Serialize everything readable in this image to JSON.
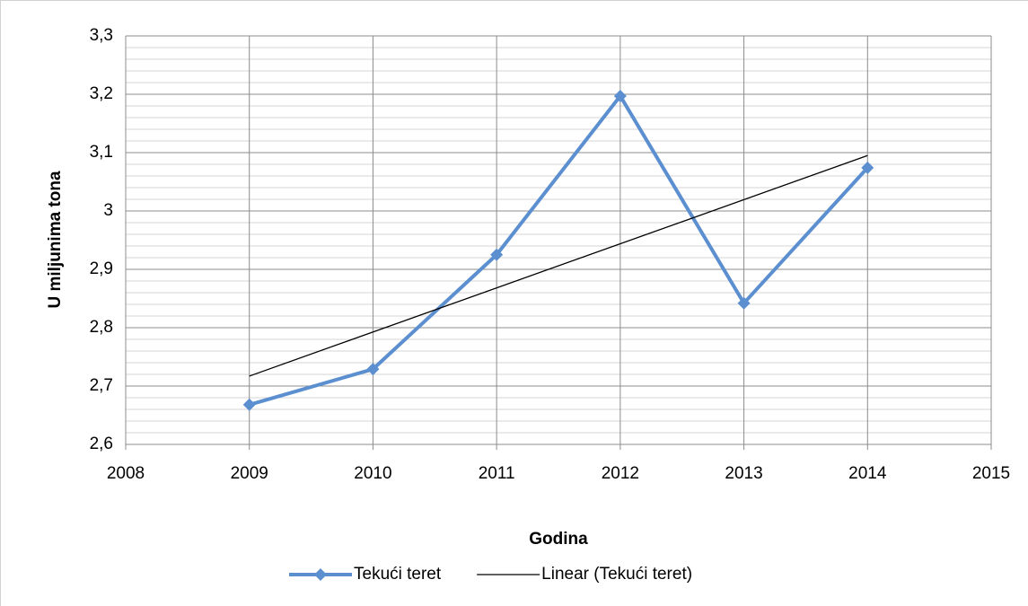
{
  "chart_data": {
    "type": "line",
    "xlabel": "Godina",
    "ylabel": "U miljunima tona",
    "xlim": [
      2008,
      2015
    ],
    "xticks": [
      2008,
      2009,
      2010,
      2011,
      2012,
      2013,
      2014,
      2015
    ],
    "ylim": [
      2.6,
      3.3
    ],
    "yticks": [
      {
        "value": 2.6,
        "label": "2,6"
      },
      {
        "value": 2.7,
        "label": "2,7"
      },
      {
        "value": 2.8,
        "label": "2,8"
      },
      {
        "value": 2.9,
        "label": "2,9"
      },
      {
        "value": 3,
        "label": "3"
      },
      {
        "value": 3.1,
        "label": "3,1"
      },
      {
        "value": 3.2,
        "label": "3,2"
      },
      {
        "value": 3.3,
        "label": "3,3"
      }
    ],
    "minor_yticks": [
      2.62,
      2.64,
      2.66,
      2.68,
      2.72,
      2.74,
      2.76,
      2.78,
      2.82,
      2.84,
      2.86,
      2.88,
      2.92,
      2.94,
      2.96,
      2.98,
      3.02,
      3.04,
      3.06,
      3.08,
      3.12,
      3.14,
      3.16,
      3.18,
      3.22,
      3.24,
      3.26,
      3.28
    ],
    "grid": true,
    "legend": "bottom",
    "series": [
      {
        "name": "Tekući teret",
        "color": "#5b8fd0",
        "marker": "diamond",
        "x": [
          2009,
          2010,
          2011,
          2012,
          2013,
          2014
        ],
        "values": [
          2.668,
          2.729,
          2.925,
          3.197,
          2.842,
          3.074
        ]
      },
      {
        "name": "Linear (Tekući teret)",
        "color": "#000000",
        "x": [
          2009,
          2014
        ],
        "values": [
          2.717,
          3.095
        ]
      }
    ]
  }
}
